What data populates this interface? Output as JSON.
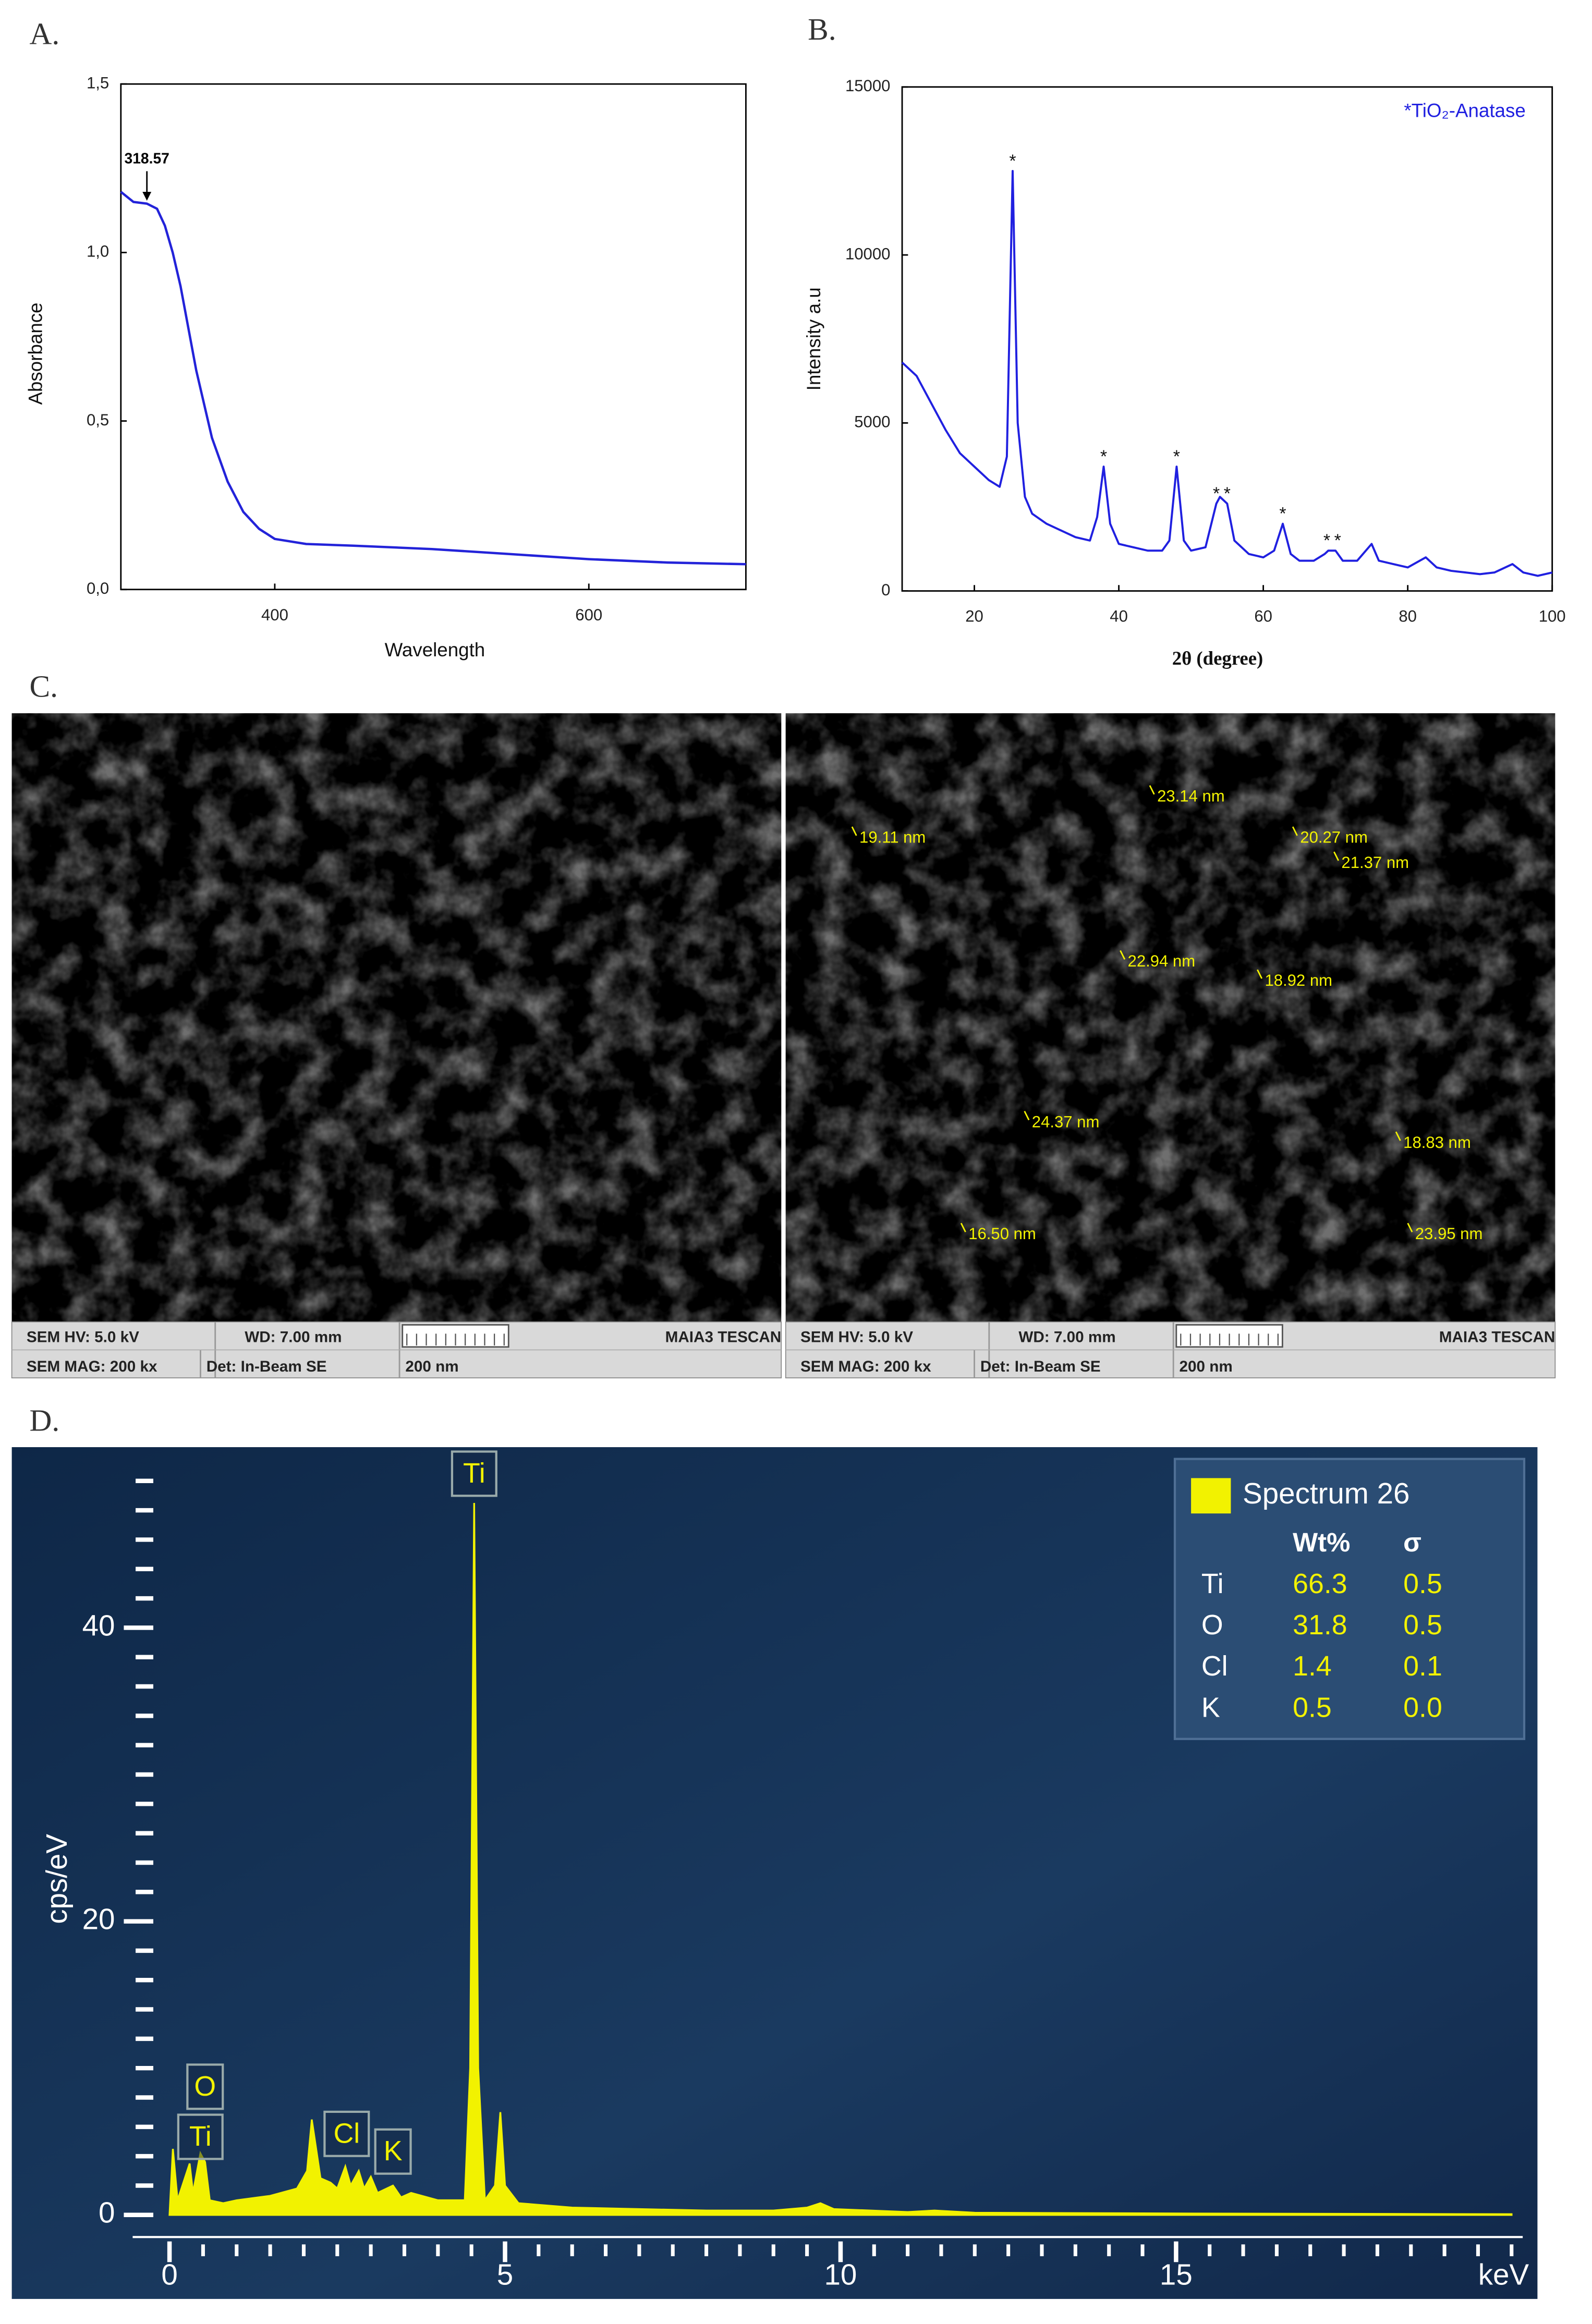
{
  "chart_data": [
    {
      "type": "line",
      "panel_label": "A.",
      "xlabel": "Wavelength",
      "ylabel": "Absorbance",
      "x": [
        302,
        310,
        318.57,
        325,
        330,
        335,
        340,
        350,
        360,
        370,
        380,
        390,
        400,
        420,
        450,
        500,
        550,
        600,
        650,
        700
      ],
      "series": [
        {
          "color": "#2323d9",
          "values": [
            1.18,
            1.15,
            1.145,
            1.13,
            1.08,
            1.0,
            0.9,
            0.65,
            0.45,
            0.32,
            0.23,
            0.18,
            0.15,
            0.135,
            0.13,
            0.12,
            0.105,
            0.09,
            0.08,
            0.075
          ]
        }
      ],
      "xlim": [
        302,
        700
      ],
      "ylim": [
        0,
        1.5
      ],
      "xticks": [
        400,
        600
      ],
      "yticks": [
        {
          "value": 0,
          "label": "0,0"
        },
        {
          "value": 0.5,
          "label": "0,5"
        },
        {
          "value": 1,
          "label": "1,0"
        },
        {
          "value": 1.5,
          "label": "1,5"
        }
      ],
      "annotations": [
        {
          "text": "318.57",
          "x": 318.57,
          "y": 1.145
        }
      ]
    },
    {
      "type": "line",
      "panel_label": "B.",
      "xlabel": "2θ (degree)",
      "ylabel": "Intensity a.u",
      "x": [
        10,
        12,
        14,
        16,
        18,
        20,
        22,
        23.5,
        24.5,
        25.3,
        26,
        27,
        28,
        30,
        32,
        34,
        36,
        37,
        37.9,
        38.8,
        40,
        42,
        44,
        46,
        47,
        48,
        49,
        50,
        52,
        53.5,
        54,
        55,
        56,
        58,
        60,
        61.5,
        62.7,
        63.8,
        65,
        67,
        68.5,
        69,
        70,
        71,
        73,
        75,
        76,
        78,
        80,
        82.5,
        84,
        86,
        88,
        90,
        92,
        94.5,
        96,
        98,
        100
      ],
      "series": [
        {
          "name": "*TiO₂-Anatase",
          "color": "#2020e0",
          "values": [
            6800,
            6400,
            5600,
            4800,
            4100,
            3700,
            3300,
            3100,
            4000,
            12500,
            5000,
            2800,
            2300,
            2000,
            1800,
            1600,
            1500,
            2200,
            3700,
            2000,
            1400,
            1300,
            1200,
            1200,
            1500,
            3700,
            1500,
            1200,
            1300,
            2600,
            2800,
            2600,
            1500,
            1100,
            1000,
            1200,
            2000,
            1100,
            900,
            900,
            1100,
            1200,
            1200,
            900,
            900,
            1400,
            900,
            800,
            700,
            1000,
            700,
            600,
            550,
            500,
            550,
            800,
            550,
            450,
            550
          ]
        }
      ],
      "xlim": [
        10,
        100
      ],
      "ylim": [
        0,
        15000
      ],
      "xticks": [
        20,
        40,
        60,
        80,
        100
      ],
      "yticks": [
        0,
        5000,
        10000,
        15000
      ],
      "annotations": [
        {
          "text": "*",
          "x": 25.3
        },
        {
          "text": "*",
          "x": 37.9
        },
        {
          "text": "*",
          "x": 48
        },
        {
          "text": "*",
          "x": 53.5
        },
        {
          "text": "*",
          "x": 55
        },
        {
          "text": "*",
          "x": 62.7
        },
        {
          "text": "*",
          "x": 68.8
        },
        {
          "text": "*",
          "x": 70.3
        }
      ]
    },
    {
      "type": "area",
      "panel_label": "D.",
      "xlabel": "keV",
      "ylabel": "cps/eV",
      "x": [
        0,
        0.05,
        0.12,
        0.3,
        0.35,
        0.46,
        0.53,
        0.6,
        0.8,
        1.0,
        1.5,
        1.9,
        2.05,
        2.12,
        2.25,
        2.4,
        2.5,
        2.62,
        2.7,
        2.82,
        2.9,
        3.0,
        3.1,
        3.33,
        3.45,
        3.6,
        4.0,
        4.4,
        4.48,
        4.54,
        4.6,
        4.7,
        4.85,
        4.93,
        5.0,
        5.2,
        6,
        7,
        8,
        9,
        9.5,
        9.7,
        9.9,
        11,
        11.4,
        12,
        15,
        20
      ],
      "series": [
        {
          "name": "Spectrum 26",
          "color": "#f2f200",
          "values": [
            0,
            4.5,
            1,
            3.5,
            1.5,
            4.2,
            3.6,
            1,
            0.8,
            1,
            1.3,
            1.8,
            3,
            6.5,
            2.5,
            2.2,
            1.8,
            3.3,
            2,
            3,
            1.8,
            2.6,
            1.5,
            2,
            1.2,
            1.5,
            1,
            1,
            10,
            48.5,
            10,
            1,
            2,
            7,
            2,
            0.8,
            0.5,
            0.4,
            0.3,
            0.3,
            0.5,
            0.8,
            0.4,
            0.2,
            0.3,
            0.15,
            0.1,
            0.05
          ]
        }
      ],
      "xlim": [
        0,
        20.1
      ],
      "ylim": [
        0,
        52
      ],
      "xticks": [
        0,
        5,
        10,
        15
      ],
      "yticks": [
        0,
        20,
        40
      ],
      "xminorticks": [
        0.5,
        1,
        1.5,
        2,
        2.5,
        3,
        3.5,
        4,
        4.5,
        5.5,
        6,
        6.5,
        7,
        7.5,
        8,
        8.5,
        9,
        9.5,
        10.5,
        11,
        11.5,
        12,
        12.5,
        13,
        13.5,
        14,
        14.5,
        15.5,
        16,
        16.5,
        17,
        17.5,
        18,
        18.5,
        19,
        19.5,
        20
      ],
      "yminorticks": [
        2,
        4,
        6,
        8,
        10,
        12,
        14,
        16,
        18,
        22,
        24,
        26,
        28,
        30,
        32,
        34,
        36,
        38,
        42,
        44,
        46,
        48,
        50
      ],
      "annotations": [
        {
          "text": "Ti",
          "x": 4.54
        },
        {
          "text": "O",
          "x": 0.53
        },
        {
          "text": "Ti",
          "x": 0.46
        },
        {
          "text": "Cl",
          "x": 2.64
        },
        {
          "text": "K",
          "x": 3.33
        }
      ],
      "table": {
        "columns": [
          "Wt%",
          "σ"
        ],
        "rows": [
          [
            "Ti",
            "66.3",
            "0.5"
          ],
          [
            "O",
            "31.8",
            "0.5"
          ],
          [
            "Cl",
            "1.4",
            "0.1"
          ],
          [
            "K",
            "0.5",
            "0.0"
          ]
        ]
      }
    }
  ],
  "sem": {
    "panel_label": "C.",
    "images": [
      {
        "info": [
          "SEM HV: 5.0 kV",
          "WD: 7.00 mm",
          "MAIA3 TESCAN",
          "SEM MAG: 200 kx",
          "Det: In-Beam SE",
          "200 nm"
        ],
        "measurements": []
      },
      {
        "info": [
          "SEM HV: 5.0 kV",
          "WD: 7.00 mm",
          "MAIA3 TESCAN",
          "SEM MAG: 200 kx",
          "Det: In-Beam SE",
          "200 nm"
        ],
        "measurements": [
          "19.11 nm",
          "23.14 nm",
          "20.27 nm",
          "21.37 nm",
          "22.94 nm",
          "18.92 nm",
          "24.37 nm",
          "18.83 nm",
          "16.50 nm",
          "23.95 nm"
        ]
      }
    ]
  }
}
